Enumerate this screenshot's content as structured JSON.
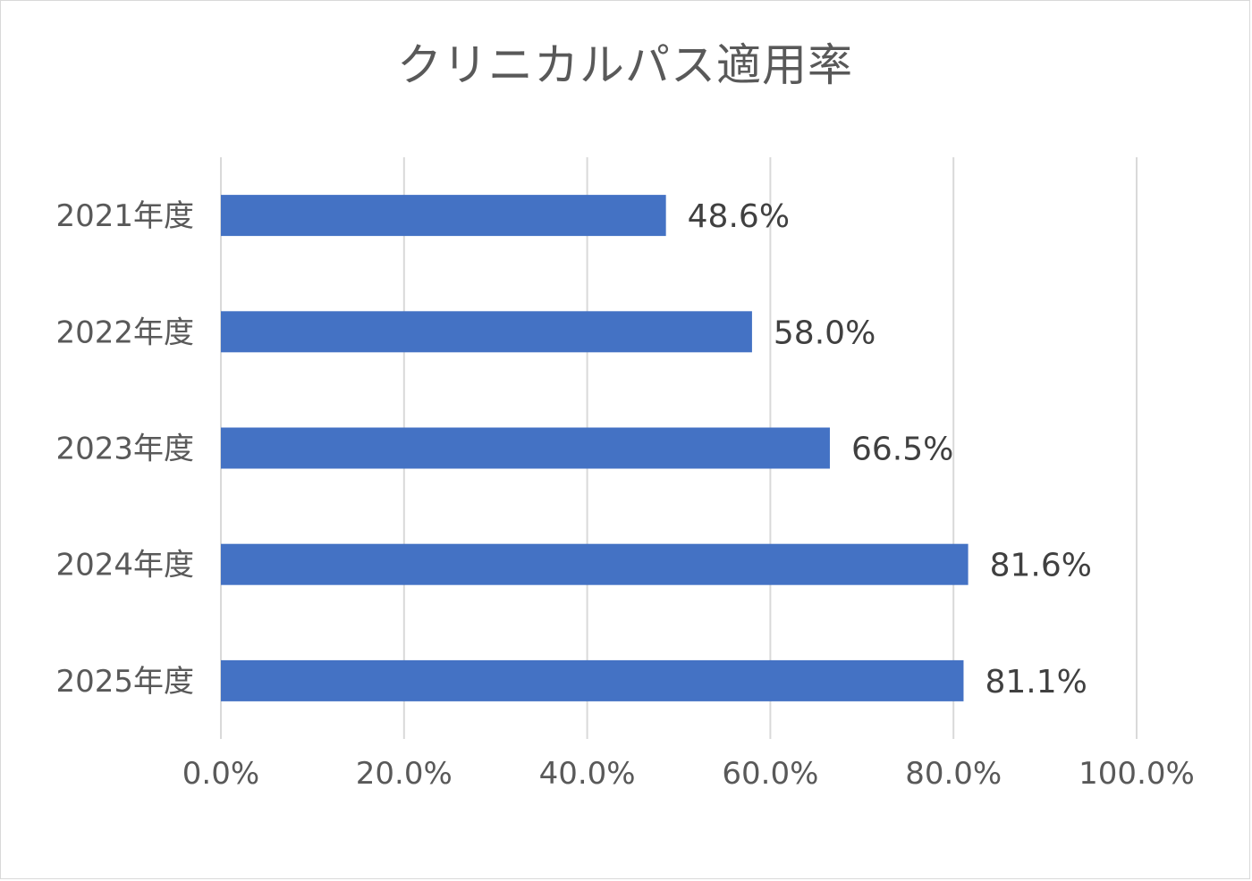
{
  "chart_data": {
    "type": "bar",
    "orientation": "horizontal",
    "title": "クリニカルパス適用率",
    "categories": [
      "2021年度",
      "2022年度",
      "2023年度",
      "2024年度",
      "2025年度"
    ],
    "values": [
      48.6,
      58.0,
      66.5,
      81.6,
      81.1
    ],
    "data_labels": [
      "48.6%",
      "58.0%",
      "66.5%",
      "81.6%",
      "81.1%"
    ],
    "xlim": [
      0,
      100
    ],
    "xticks": [
      0,
      20,
      40,
      60,
      80,
      100
    ],
    "xtick_labels": [
      "0.0%",
      "20.0%",
      "40.0%",
      "60.0%",
      "80.0%",
      "100.0%"
    ],
    "grid": true,
    "bar_color": "#4472C4",
    "grid_color": "#D9D9D9",
    "text_color": "#595959"
  }
}
